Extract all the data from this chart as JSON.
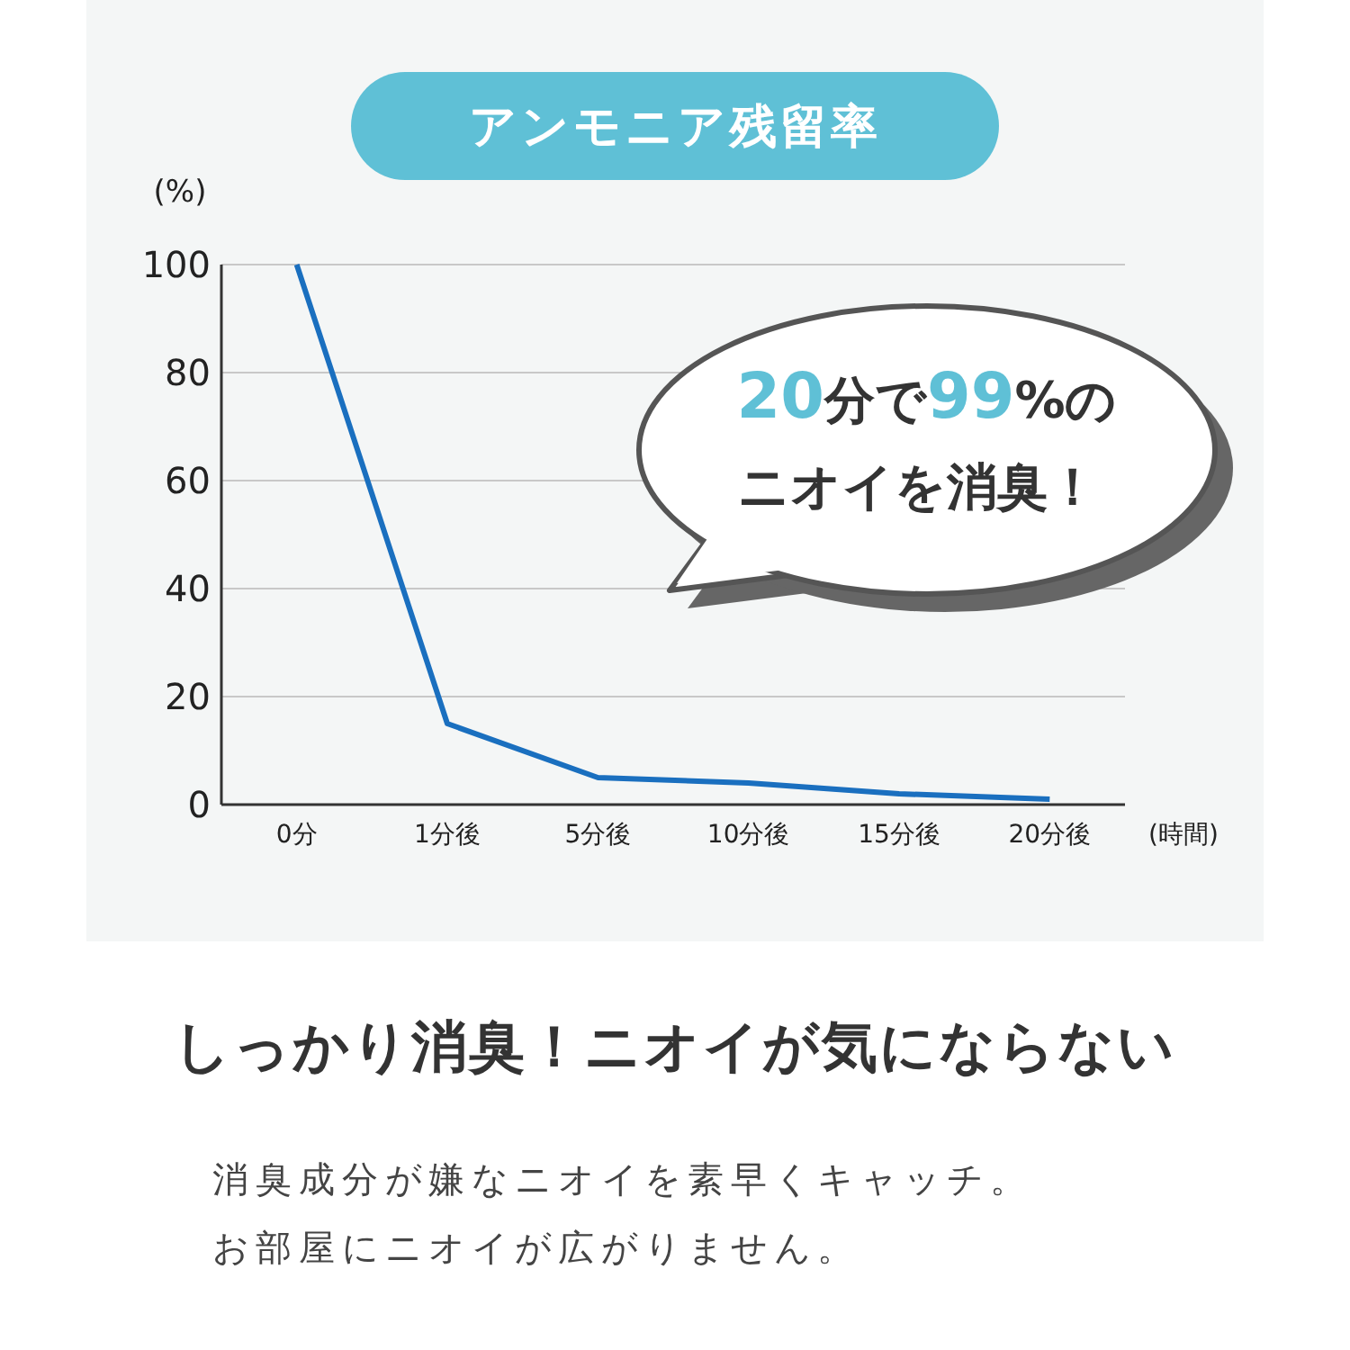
{
  "chart_data": {
    "type": "line",
    "title": "アンモニア残留率",
    "ylabel": "(%)",
    "xlabel": "(時間)",
    "categories": [
      "0分",
      "1分後",
      "5分後",
      "10分後",
      "15分後",
      "20分後"
    ],
    "series": [
      {
        "color": "#1a6fbf",
        "values": [
          100,
          15,
          5,
          4,
          2,
          1
        ]
      }
    ],
    "ylim": [
      0,
      100
    ],
    "yticks": [
      0,
      20,
      40,
      60,
      80,
      100
    ],
    "grid": "y",
    "marker": "none",
    "line_style": "solid",
    "annotations": [
      "20分で99%の",
      "ニオイを消臭！",
      "しっかり消臭！ニオイが気にならない",
      "消臭成分が嫌なニオイを素早くキャッチ。",
      "お部屋にニオイが広がりません。"
    ]
  }
}
